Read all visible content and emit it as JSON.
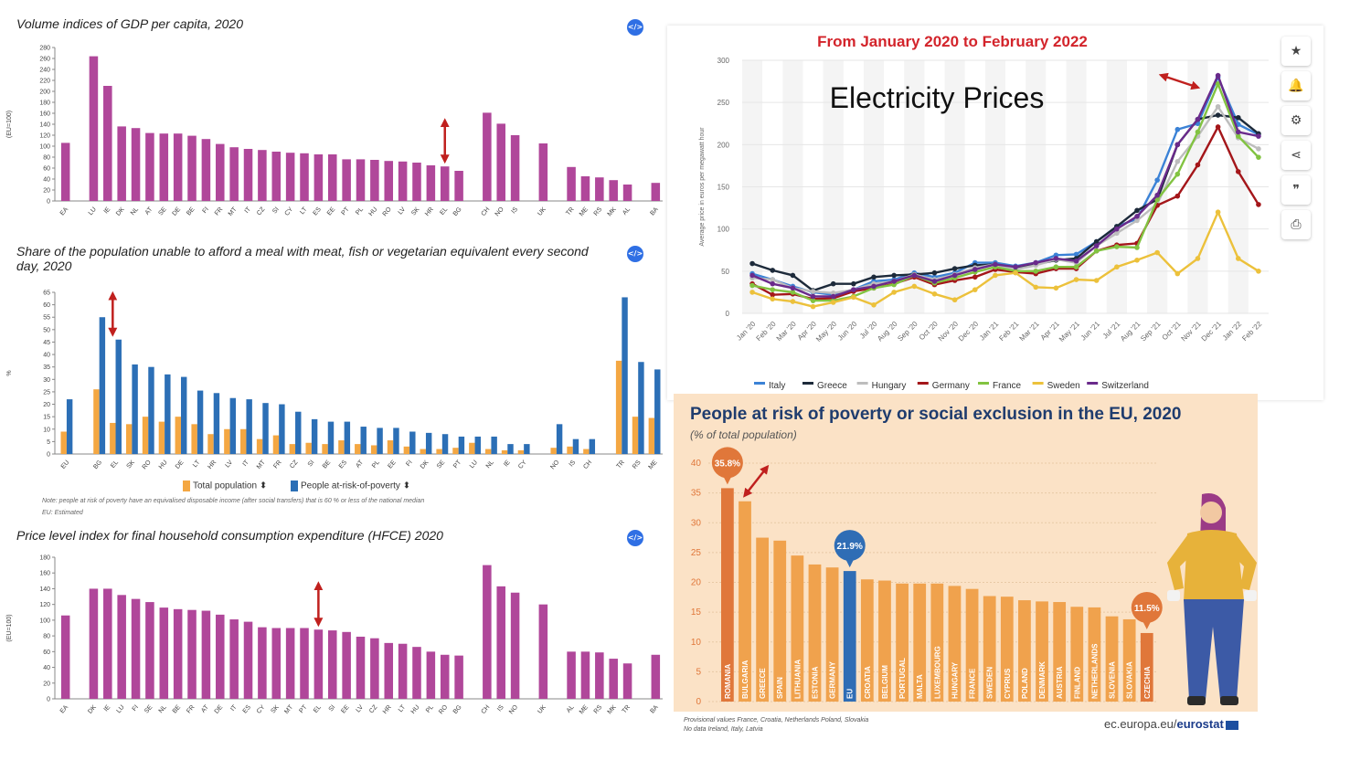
{
  "charts_meta": {
    "gdp_title": "Volume indices of GDP per capita, 2020",
    "meal_title": "Share of the population unable to afford a meal with meat, fish or vegetarian equivalent every second day, 2020",
    "hfce_title": "Price level index for final household consumption expenditure (HFCE) 2020",
    "elec_title": "From January 2020 to February 2022",
    "elec_overlay": "Electricity Prices",
    "poverty_title": "People at risk of poverty or social exclusion in the EU, 2020",
    "poverty_subtitle": "(% of total population)",
    "embed_label": "</>",
    "meal_note": "Note: people at risk of poverty have an equivalised disposable income (after social transfers) that is 60 % or less of the national median",
    "meal_note2": "EU: Estimated",
    "meal_legend_total": "Total population ⬍",
    "meal_legend_risk": "People at-risk-of-poverty ⬍",
    "poverty_note1": "Provisional values France, Croatia, Netherlands Poland,  Slovakia",
    "poverty_note2": "No data Ireland, Italy, Latvia",
    "eurostat_prefix": "ec.europa.eu/",
    "eurostat_bold": "eurostat",
    "toolbar_icons": [
      "star-icon",
      "bell-icon",
      "gear-icon",
      "share-icon",
      "quote-icon",
      "print-icon"
    ],
    "toolbar_glyphs": [
      "★",
      "🔔",
      "⚙",
      "⋖",
      "❞",
      "⎙"
    ]
  },
  "chart_data": [
    {
      "type": "bar",
      "id": "gdp",
      "title": "Volume indices of GDP per capita, 2020",
      "ylabel": "(EU=100)",
      "ylim": [
        0,
        280
      ],
      "yticks": [
        0,
        20,
        40,
        60,
        80,
        100,
        120,
        140,
        160,
        180,
        200,
        220,
        240,
        260,
        280
      ],
      "color": "#b0479a",
      "categories": [
        "EA",
        "",
        "LU",
        "IE",
        "DK",
        "NL",
        "AT",
        "SE",
        "DE",
        "BE",
        "FI",
        "FR",
        "MT",
        "IT",
        "CZ",
        "SI",
        "CY",
        "LT",
        "ES",
        "EE",
        "PT",
        "PL",
        "HU",
        "RO",
        "LV",
        "SK",
        "HR",
        "EL",
        "BG",
        "",
        "CH",
        "NO",
        "IS",
        "",
        "UK",
        "",
        "TR",
        "ME",
        "RS",
        "MK",
        "AL",
        "",
        "BA"
      ],
      "values": [
        106,
        null,
        264,
        210,
        136,
        133,
        124,
        123,
        123,
        119,
        113,
        104,
        98,
        95,
        93,
        90,
        88,
        87,
        85,
        85,
        76,
        76,
        75,
        73,
        72,
        70,
        65,
        63,
        55,
        null,
        161,
        141,
        120,
        null,
        105,
        null,
        62,
        45,
        43,
        38,
        30,
        null,
        33
      ],
      "annotations": [
        {
          "type": "double-arrow",
          "at": "EL"
        }
      ]
    },
    {
      "type": "bar",
      "id": "meal",
      "title": "Share of the population unable to afford a meal with meat, fish or vegetarian equivalent every second day, 2020",
      "ylabel": "%",
      "ylim": [
        0,
        65
      ],
      "yticks": [
        0,
        5,
        10,
        15,
        20,
        25,
        30,
        35,
        40,
        45,
        50,
        55,
        60,
        65
      ],
      "categories": [
        "EU",
        "",
        "BG",
        "EL",
        "SK",
        "RO",
        "HU",
        "DE",
        "LT",
        "HR",
        "LV",
        "IT",
        "MT",
        "FR",
        "CZ",
        "SI",
        "BE",
        "ES",
        "AT",
        "PL",
        "EE",
        "FI",
        "DK",
        "SE",
        "PT",
        "LU",
        "NL",
        "IE",
        "CY",
        "",
        "NO",
        "IS",
        "CH",
        "",
        "TR",
        "RS",
        "ME"
      ],
      "series": [
        {
          "name": "Total population",
          "color": "#f4a742",
          "values": [
            9,
            null,
            26,
            12.5,
            12,
            15,
            13,
            15,
            12,
            8,
            10,
            10,
            6,
            7.5,
            4,
            4.5,
            4,
            5.5,
            4,
            3.5,
            5.5,
            3,
            2,
            2,
            2.5,
            4.5,
            2,
            1.5,
            1.5,
            null,
            2.5,
            3,
            2,
            null,
            37.5,
            15,
            14.5
          ]
        },
        {
          "name": "People at-risk-of-poverty",
          "color": "#2c6fb6",
          "values": [
            22,
            null,
            55,
            46,
            36,
            35,
            32,
            31,
            25.5,
            24.5,
            22.5,
            22,
            20.5,
            20,
            17,
            14,
            13,
            13,
            11,
            10.5,
            10.5,
            9,
            8.5,
            8,
            7,
            7,
            7,
            4,
            4,
            null,
            12,
            6,
            6,
            null,
            63,
            37,
            34
          ]
        }
      ],
      "annotations": [
        {
          "type": "double-arrow",
          "at": "EL"
        }
      ]
    },
    {
      "type": "bar",
      "id": "hfce",
      "title": "Price level index for final household consumption expenditure (HFCE) 2020",
      "ylabel": "(EU=100)",
      "ylim": [
        0,
        180
      ],
      "yticks": [
        0,
        20,
        40,
        60,
        80,
        100,
        120,
        140,
        160,
        180
      ],
      "color": "#b0479a",
      "categories": [
        "EA",
        "",
        "DK",
        "IE",
        "LU",
        "FI",
        "SE",
        "NL",
        "BE",
        "FR",
        "AT",
        "DE",
        "IT",
        "ES",
        "CY",
        "SK",
        "MT",
        "PT",
        "EL",
        "SI",
        "EE",
        "LV",
        "CZ",
        "HR",
        "LT",
        "HU",
        "PL",
        "RO",
        "BG",
        "",
        "CH",
        "IS",
        "NO",
        "",
        "UK",
        "",
        "AL",
        "ME",
        "RS",
        "MK",
        "TR",
        "",
        "BA"
      ],
      "values": [
        106,
        null,
        140,
        140,
        132,
        127,
        123,
        116,
        114,
        113,
        112,
        107,
        101,
        98,
        91,
        90,
        90,
        90,
        88,
        87,
        85,
        79,
        77,
        71,
        70,
        66,
        60,
        56,
        55,
        null,
        170,
        143,
        135,
        null,
        120,
        null,
        60,
        60,
        59,
        51,
        45,
        null,
        56
      ],
      "annotations": [
        {
          "type": "double-arrow",
          "at": "EL"
        }
      ]
    },
    {
      "type": "line",
      "id": "electricity",
      "title": "From January 2020 to February 2022",
      "ylabel": "Average price in euros per megawatt hour",
      "ylim": [
        0,
        300
      ],
      "yticks": [
        0,
        50,
        100,
        150,
        200,
        250,
        300
      ],
      "x": [
        "Jan '20",
        "Feb '20",
        "Mar '20",
        "Apr '20",
        "May '20",
        "Jun '20",
        "Jul '20",
        "Aug '20",
        "Sep '20",
        "Oct '20",
        "Nov '20",
        "Dec '20",
        "Jan '21",
        "Feb '21",
        "Mar '21",
        "Apr '21",
        "May '21",
        "Jun '21",
        "Jul '21",
        "Aug '21",
        "Sep '21",
        "Oct '21",
        "Nov '21",
        "Dec '21",
        "Jan '22",
        "Feb '22"
      ],
      "series": [
        {
          "name": "Italy",
          "color": "#3b82d6",
          "values": [
            47,
            40,
            32,
            25,
            22,
            28,
            38,
            40,
            48,
            43,
            48,
            60,
            60,
            56,
            60,
            69,
            70,
            85,
            103,
            112,
            158,
            218,
            225,
            280,
            224,
            212
          ]
        },
        {
          "name": "Greece",
          "color": "#1d2a3a",
          "values": [
            59,
            51,
            45,
            27,
            35,
            35,
            43,
            45,
            46,
            48,
            53,
            57,
            58,
            53,
            58,
            63,
            65,
            85,
            103,
            122,
            135,
            200,
            230,
            235,
            232,
            213
          ]
        },
        {
          "name": "Hungary",
          "color": "#bdbdbd",
          "values": [
            42,
            40,
            30,
            26,
            24,
            28,
            35,
            38,
            46,
            40,
            46,
            54,
            58,
            52,
            57,
            64,
            60,
            80,
            95,
            110,
            130,
            180,
            210,
            245,
            208,
            195
          ]
        },
        {
          "name": "Germany",
          "color": "#a4161a",
          "values": [
            35,
            22,
            23,
            17,
            18,
            26,
            30,
            35,
            43,
            34,
            39,
            43,
            52,
            49,
            47,
            53,
            53,
            74,
            81,
            83,
            128,
            139,
            176,
            221,
            168,
            129
          ]
        },
        {
          "name": "France",
          "color": "#82c341",
          "values": [
            33,
            28,
            25,
            15,
            15,
            20,
            30,
            34,
            45,
            36,
            42,
            49,
            55,
            50,
            50,
            55,
            55,
            74,
            79,
            78,
            135,
            165,
            215,
            272,
            210,
            185
          ]
        },
        {
          "name": "Sweden",
          "color": "#ecc13b",
          "values": [
            25,
            17,
            14,
            8,
            13,
            19,
            10,
            25,
            32,
            23,
            16,
            28,
            45,
            48,
            31,
            30,
            40,
            39,
            55,
            63,
            72,
            47,
            65,
            120,
            65,
            50
          ]
        },
        {
          "name": "Switzerland",
          "color": "#6a2a8b",
          "values": [
            45,
            35,
            30,
            20,
            20,
            28,
            32,
            38,
            45,
            38,
            45,
            52,
            58,
            55,
            60,
            65,
            62,
            80,
            100,
            115,
            140,
            200,
            230,
            282,
            215,
            210
          ]
        }
      ],
      "annotations": [
        {
          "type": "double-arrow",
          "near": "Nov '21"
        }
      ]
    },
    {
      "type": "bar",
      "id": "poverty",
      "title": "People at risk of poverty or social exclusion in the EU, 2020",
      "subtitle": "(% of total population)",
      "ylim": [
        0,
        40
      ],
      "yticks": [
        0,
        5,
        10,
        15,
        20,
        25,
        30,
        35,
        40
      ],
      "categories": [
        "ROMANIA",
        "BULGARIA",
        "GREECE",
        "SPAIN",
        "LITHUANIA",
        "ESTONIA",
        "GERMANY",
        "EU",
        "CROATIA",
        "BELGIUM",
        "PORTUGAL",
        "MALTA",
        "LUXEMBOURG",
        "HUNGARY",
        "FRANCE",
        "SWEDEN",
        "CYPRUS",
        "POLAND",
        "DENMARK",
        "AUSTRIA",
        "FINLAND",
        "NETHERLANDS",
        "SLOVENIA",
        "SLOVAKIA",
        "CZECHIA"
      ],
      "values": [
        35.8,
        33.6,
        27.5,
        27.0,
        24.5,
        23.0,
        22.5,
        21.9,
        20.5,
        20.3,
        19.8,
        19.8,
        19.8,
        19.4,
        18.9,
        17.7,
        17.6,
        17.0,
        16.8,
        16.7,
        15.9,
        15.8,
        14.3,
        13.8,
        11.5
      ],
      "colors": {
        "bar": "#f0a24d",
        "eu": "#2f6db5",
        "highlight": "#e0773a"
      },
      "callouts": [
        {
          "category": "ROMANIA",
          "label": "35.8%"
        },
        {
          "category": "EU",
          "label": "21.9%"
        },
        {
          "category": "CZECHIA",
          "label": "11.5%"
        }
      ],
      "annotations": [
        {
          "type": "double-arrow",
          "near": "BULGARIA"
        }
      ]
    }
  ]
}
